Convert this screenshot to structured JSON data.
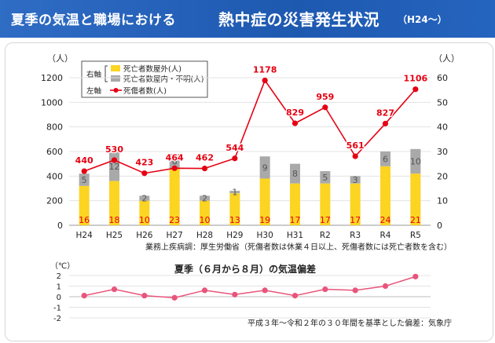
{
  "header": {
    "title_part1": "夏季の気温と職場における",
    "title_part2": "熱中症の災害発生状況",
    "title_part3": "（H24～）"
  },
  "colors": {
    "bar_outdoor": "#fcd422",
    "bar_indoor": "#a9a9a9",
    "line": "#e60012",
    "temp_line": "#e9547a",
    "header_bg": "#2563ba"
  },
  "chart_data": [
    {
      "type": "bar+line",
      "categories": [
        "H24",
        "H25",
        "H26",
        "H27",
        "H28",
        "H29",
        "H30",
        "H31",
        "R2",
        "R3",
        "R4",
        "R5"
      ],
      "left_axis": {
        "unit_label": "（人）",
        "ticks": [
          "0",
          "200",
          "400",
          "600",
          "800",
          "1000",
          "1200"
        ],
        "ylim": [
          0,
          1200
        ]
      },
      "right_axis": {
        "unit_label": "（人）",
        "ticks": [
          "0",
          "10",
          "20",
          "30",
          "40",
          "50",
          "60"
        ],
        "ylim": [
          0,
          60
        ]
      },
      "legend": {
        "right_axis_label": "右軸",
        "left_axis_label": "左軸",
        "bar_outdoor_label": "死亡者数屋外(人)",
        "bar_indoor_label": "死亡者数屋内・不明(人)",
        "line_label": "死傷者数(人)"
      },
      "series": [
        {
          "name": "死亡者数屋外(人)",
          "axis": "right",
          "type": "bar-stack",
          "values": [
            16,
            18,
            10,
            23,
            10,
            13,
            19,
            17,
            17,
            17,
            24,
            21
          ],
          "labels": [
            "16",
            "18",
            "10",
            "23",
            "10",
            "13",
            "19",
            "17",
            "17",
            "17",
            "24",
            "21"
          ]
        },
        {
          "name": "死亡者数屋内・不明(人)",
          "axis": "right",
          "type": "bar-stack",
          "values": [
            5,
            12,
            2,
            6,
            2,
            1,
            9,
            8,
            5,
            3,
            6,
            10
          ],
          "labels": [
            "5",
            "12",
            "2",
            "6",
            "2",
            "1",
            "9",
            "8",
            "5",
            "3",
            "6",
            "10"
          ]
        },
        {
          "name": "死傷者数(人)",
          "axis": "left",
          "type": "line",
          "values": [
            440,
            530,
            423,
            464,
            462,
            544,
            1178,
            829,
            959,
            561,
            827,
            1106
          ],
          "labels": [
            "440",
            "530",
            "423",
            "464",
            "462",
            "544",
            "1178",
            "829",
            "959",
            "561",
            "827",
            "1106"
          ]
        }
      ],
      "source_note": "業務上疾病調：厚生労働省（死傷者数は休業４日以上、死傷者数には死亡者数を含む）"
    },
    {
      "type": "line",
      "title": "夏季（６月から８月）の気温偏差",
      "unit_label": "（℃）",
      "y_ticks": [
        "2",
        "1",
        "0",
        "-1",
        "-2"
      ],
      "ylim": [
        -2,
        2
      ],
      "categories": [
        "H24",
        "H25",
        "H26",
        "H27",
        "H28",
        "H29",
        "H30",
        "H31",
        "R2",
        "R3",
        "R4",
        "R5"
      ],
      "values": [
        0.1,
        0.7,
        0.1,
        -0.1,
        0.6,
        0.2,
        0.6,
        0.1,
        0.7,
        0.6,
        1.0,
        1.9
      ],
      "source_note": "平成３年～令和２年の３０年間を基準とした偏差：気象庁"
    }
  ]
}
